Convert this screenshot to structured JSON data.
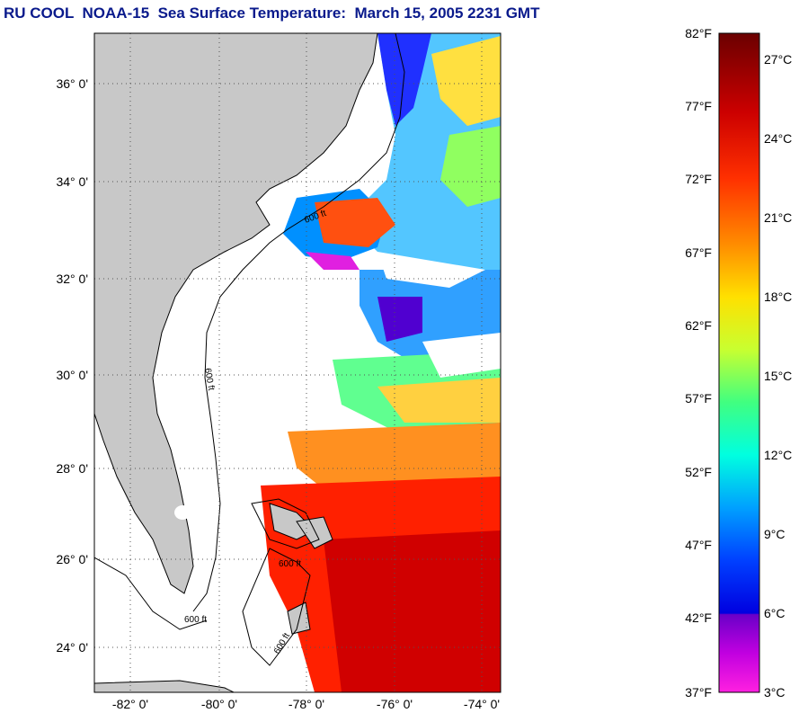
{
  "title": "RU COOL  NOAA-15  Sea Surface Temperature:  March 15, 2005 2231 GMT",
  "map": {
    "lat_labels": [
      "36° 0'",
      "34° 0'",
      "32° 0'",
      "30° 0'",
      "28° 0'",
      "26° 0'",
      "24° 0'"
    ],
    "lon_labels": [
      "-82° 0'",
      "-80° 0'",
      "-78° 0'",
      "-76° 0'",
      "-74° 0'"
    ],
    "contour_labels": [
      "600 ft",
      "600 ft",
      "600 ft",
      "600 ft",
      "600 ft"
    ],
    "land_color": "#c8c8c8",
    "cloud_color": "#ffffff"
  },
  "colorbar": {
    "fahrenheit_labels": [
      "82°F",
      "77°F",
      "72°F",
      "67°F",
      "62°F",
      "57°F",
      "52°F",
      "47°F",
      "42°F",
      "37°F"
    ],
    "celsius_labels": [
      "27°C",
      "24°C",
      "21°C",
      "18°C",
      "15°C",
      "12°C",
      "9°C",
      "6°C",
      "3°C"
    ],
    "colors_top_to_bottom": [
      "#7a0000",
      "#ff0000",
      "#ff8000",
      "#ffff00",
      "#80ff40",
      "#00ffff",
      "#0080ff",
      "#0000ff",
      "#8000c0",
      "#ff00ff"
    ]
  }
}
